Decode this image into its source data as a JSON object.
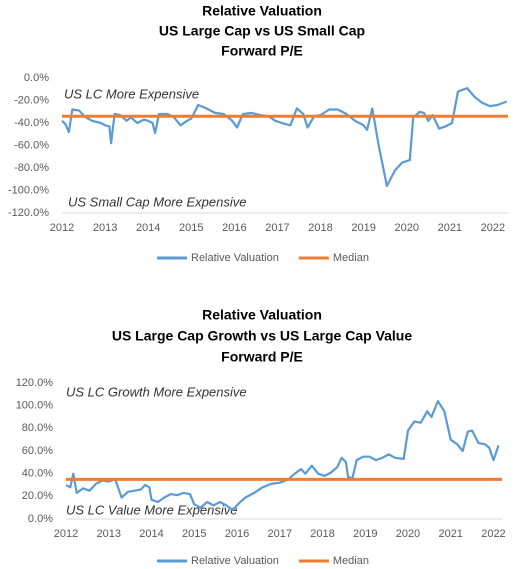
{
  "chart_data": [
    {
      "type": "line",
      "title": [
        "Relative Valuation",
        "US Large Cap vs US Small Cap",
        "Forward P/E"
      ],
      "annotations": [
        "US LC More Expensive",
        "US Small Cap More Expensive"
      ],
      "x": [
        2012.0,
        2012.08,
        2012.16,
        2012.24,
        2012.4,
        2012.55,
        2012.7,
        2012.9,
        2013.0,
        2013.1,
        2013.14,
        2013.22,
        2013.35,
        2013.5,
        2013.6,
        2013.75,
        2013.9,
        2014.0,
        2014.1,
        2014.16,
        2014.25,
        2014.45,
        2014.6,
        2014.75,
        2014.9,
        2015.0,
        2015.16,
        2015.35,
        2015.55,
        2015.75,
        2015.95,
        2016.06,
        2016.2,
        2016.4,
        2016.6,
        2016.8,
        2016.95,
        2017.1,
        2017.3,
        2017.45,
        2017.6,
        2017.7,
        2017.85,
        2018.0,
        2018.2,
        2018.4,
        2018.6,
        2018.8,
        2019.0,
        2019.08,
        2019.2,
        2019.35,
        2019.54,
        2019.73,
        2019.9,
        2020.07,
        2020.15,
        2020.3,
        2020.4,
        2020.5,
        2020.6,
        2020.75,
        2020.9,
        2021.05,
        2021.19,
        2021.4,
        2021.58,
        2021.75,
        2021.93,
        2022.1,
        2022.32
      ],
      "series": [
        {
          "name": "Relative Valuation",
          "color": "#5b9bd5",
          "values": [
            -38,
            -41,
            -48,
            -28,
            -29,
            -35,
            -38,
            -40,
            -42,
            -43,
            -58,
            -32,
            -33,
            -38,
            -35,
            -40,
            -37,
            -38,
            -40,
            -49,
            -32,
            -32,
            -35,
            -42,
            -38,
            -36,
            -24,
            -27,
            -31,
            -32,
            -38,
            -44,
            -32,
            -31,
            -33,
            -34,
            -38,
            -40,
            -42,
            -27,
            -32,
            -44,
            -34,
            -33,
            -28,
            -28,
            -32,
            -38,
            -42,
            -46,
            -27,
            -60,
            -96,
            -82,
            -75,
            -73,
            -35,
            -30,
            -31,
            -38,
            -33,
            -45,
            -43,
            -40,
            -12,
            -9,
            -17,
            -22,
            -25,
            -24,
            -21
          ]
        }
      ],
      "reference_lines": [
        {
          "name": "Median",
          "color": "#ed7d31",
          "value": -34
        }
      ],
      "xlim": [
        2012,
        2022.35
      ],
      "xticks": [
        2012,
        2013,
        2014,
        2015,
        2016,
        2017,
        2018,
        2019,
        2020,
        2021,
        2022
      ],
      "ylim": [
        -120,
        0
      ],
      "yticks": [
        {
          "value": 0,
          "label": "0.0%"
        },
        {
          "value": -20,
          "label": "-20.0%"
        },
        {
          "value": -40,
          "label": "-40.0%"
        },
        {
          "value": -60,
          "label": "-60.0%"
        },
        {
          "value": -80,
          "label": "-80.0%"
        },
        {
          "value": -100,
          "label": "-100.0%"
        },
        {
          "value": -120,
          "label": "-120.0%"
        }
      ],
      "grid": false,
      "legend": "bottom"
    },
    {
      "type": "line",
      "title": [
        "Relative Valuation",
        "US Large Cap Growth vs US Large Cap Value",
        "Forward P/E"
      ],
      "annotations": [
        "US LC Growth More Expensive",
        "US LC Value More Expensive"
      ],
      "x": [
        2012.0,
        2012.1,
        2012.17,
        2012.25,
        2012.4,
        2012.55,
        2012.7,
        2012.85,
        2013.0,
        2013.15,
        2013.3,
        2013.45,
        2013.6,
        2013.75,
        2013.85,
        2013.95,
        2014.0,
        2014.15,
        2014.3,
        2014.45,
        2014.6,
        2014.75,
        2014.9,
        2015.0,
        2015.15,
        2015.3,
        2015.45,
        2015.6,
        2015.75,
        2015.9,
        2016.05,
        2016.2,
        2016.4,
        2016.6,
        2016.8,
        2017.0,
        2017.2,
        2017.35,
        2017.5,
        2017.6,
        2017.75,
        2017.9,
        2018.05,
        2018.2,
        2018.35,
        2018.45,
        2018.55,
        2018.6,
        2018.7,
        2018.8,
        2018.95,
        2019.1,
        2019.25,
        2019.4,
        2019.55,
        2019.7,
        2019.9,
        2020.0,
        2020.15,
        2020.3,
        2020.45,
        2020.55,
        2020.7,
        2020.85,
        2021.0,
        2021.15,
        2021.28,
        2021.4,
        2021.5,
        2021.65,
        2021.8,
        2021.9,
        2022.0,
        2022.12
      ],
      "series": [
        {
          "name": "Relative Valuation",
          "color": "#5b9bd5",
          "values": [
            30,
            28,
            40,
            23,
            27,
            25,
            31,
            34,
            33,
            35,
            19,
            24,
            25,
            26,
            30,
            28,
            17,
            15,
            19,
            22,
            21,
            23,
            22,
            13,
            10,
            15,
            12,
            15,
            12,
            8,
            14,
            19,
            23,
            28,
            31,
            32,
            35,
            40,
            44,
            40,
            47,
            40,
            38,
            41,
            46,
            54,
            50,
            37,
            36,
            52,
            55,
            55,
            52,
            54,
            57,
            54,
            53,
            78,
            86,
            85,
            95,
            90,
            104,
            95,
            70,
            66,
            60,
            77,
            78,
            67,
            66,
            63,
            52,
            65
          ]
        }
      ],
      "reference_lines": [
        {
          "name": "Median",
          "color": "#ed7d31",
          "value": 35
        }
      ],
      "xlim": [
        2012,
        2022.2
      ],
      "xticks": [
        2012,
        2013,
        2014,
        2015,
        2016,
        2017,
        2018,
        2019,
        2020,
        2021,
        2022
      ],
      "ylim": [
        0,
        120
      ],
      "yticks": [
        {
          "value": 0,
          "label": "0.0%"
        },
        {
          "value": 20,
          "label": "20.0%"
        },
        {
          "value": 40,
          "label": "40.0%"
        },
        {
          "value": 60,
          "label": "60.0%"
        },
        {
          "value": 80,
          "label": "80.0%"
        },
        {
          "value": 100,
          "label": "100.0%"
        },
        {
          "value": 120,
          "label": "120.0%"
        }
      ],
      "grid": false,
      "legend": "bottom"
    }
  ]
}
